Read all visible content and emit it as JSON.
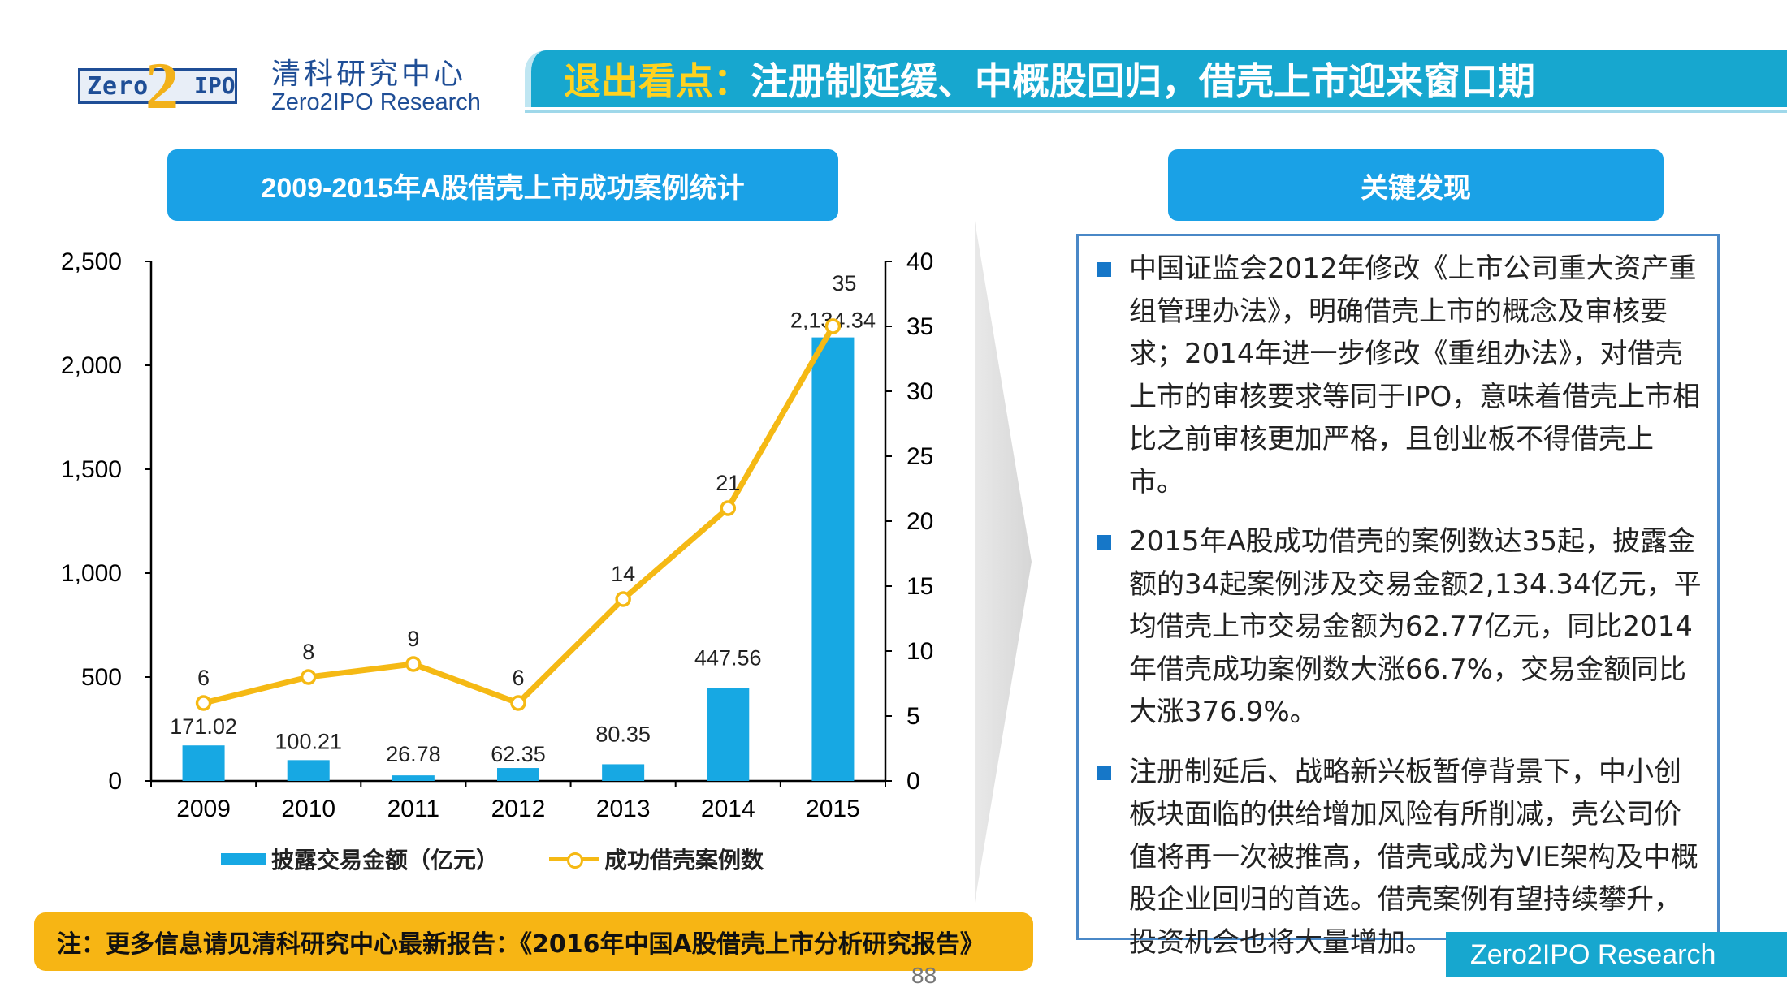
{
  "header": {
    "logo_left": "Zero",
    "logo_two": "2",
    "logo_right": "IPO",
    "brand_cn": "清科研究中心",
    "brand_en": "Zero2IPO Research",
    "title_highlight": "退出看点：",
    "title_rest": "注册制延缓、中概股回归，借壳上市迎来窗口期"
  },
  "chart_section": {
    "title": "2009-2015年A股借壳上市成功案例统计"
  },
  "chart_data": {
    "type": "bar",
    "categories": [
      "2009",
      "2010",
      "2011",
      "2012",
      "2013",
      "2014",
      "2015"
    ],
    "series": [
      {
        "name": "披露交易金额（亿元）",
        "type": "bar",
        "axis": "left",
        "values": [
          171.02,
          100.21,
          26.78,
          62.35,
          80.35,
          447.56,
          2134.34
        ],
        "labels": [
          "171.02",
          "100.21",
          "26.78",
          "62.35",
          "80.35",
          "447.56",
          "2,134.34"
        ]
      },
      {
        "name": "成功借壳案例数",
        "type": "line",
        "axis": "right",
        "values": [
          6,
          8,
          9,
          6,
          14,
          21,
          35
        ],
        "labels": [
          "6",
          "8",
          "9",
          "6",
          "14",
          "21",
          "35"
        ]
      }
    ],
    "y_left": {
      "range": [
        0,
        2500
      ],
      "ticks": [
        "0",
        "500",
        "1,000",
        "1,500",
        "2,000",
        "2,500"
      ],
      "tick_values": [
        0,
        500,
        1000,
        1500,
        2000,
        2500
      ]
    },
    "y_right": {
      "range": [
        0,
        40
      ],
      "ticks": [
        "0",
        "5",
        "10",
        "15",
        "20",
        "25",
        "30",
        "35",
        "40"
      ],
      "tick_values": [
        0,
        5,
        10,
        15,
        20,
        25,
        30,
        35,
        40
      ]
    },
    "legend_position": "bottom",
    "colors": {
      "bar": "#17a8e3",
      "line": "#f5b914"
    }
  },
  "findings": {
    "title": "关键发现",
    "items": [
      "中国证监会2012年修改《上市公司重大资产重组管理办法》，明确借壳上市的概念及审核要求；2014年进一步修改《重组办法》，对借壳上市的审核要求等同于IPO，意味着借壳上市相比之前审核更加严格，且创业板不得借壳上市。",
      "2015年A股成功借壳的案例数达35起，披露金额的34起案例涉及交易金额2,134.34亿元，平均借壳上市交易金额为62.77亿元，同比2014年借壳成功案例数大涨66.7%，交易金额同比大涨376.9%。",
      "注册制延后、战略新兴板暂停背景下，中小创板块面临的供给增加风险有所削减，壳公司价值将再一次被推高，借壳或成为VIE架构及中概股企业回归的首选。借壳案例有望持续攀升，投资机会也将大量增加。"
    ]
  },
  "footer": {
    "note": "注：更多信息请见清科研究中心最新报告：《2016年中国A股借壳上市分析研究报告》",
    "brand": "Zero2IPO Research",
    "page": "88"
  }
}
